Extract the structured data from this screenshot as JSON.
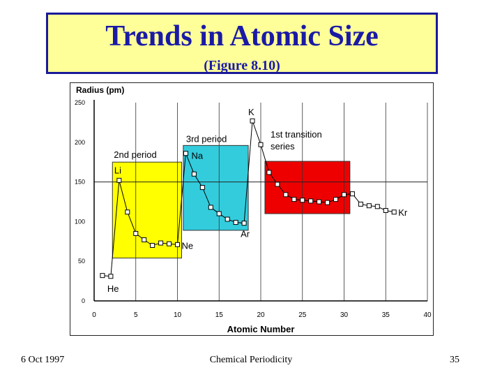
{
  "slide": {
    "title": "Trends in Atomic Size",
    "subtitle": "(Figure 8.10)"
  },
  "footer": {
    "date": "6 Oct 1997",
    "topic": "Chemical Periodicity",
    "page": "35"
  },
  "colors": {
    "title_text": "#1a1aa6",
    "title_fill": "#ffff99",
    "period2_box": "#ffff00",
    "period3_box": "#33ccdd",
    "transition_box": "#ee0000"
  },
  "chart_data": {
    "type": "line",
    "xlabel": "Atomic Number",
    "ylabel": "Radius (pm)",
    "xlim": [
      0,
      40
    ],
    "ylim": [
      0,
      250
    ],
    "xticks": [
      0,
      5,
      10,
      15,
      20,
      25,
      30,
      35,
      40
    ],
    "yticks": [
      0,
      50,
      100,
      150,
      200,
      250
    ],
    "grid": "vertical lines at each x tick, one horizontal reference line at y=150",
    "x": [
      1,
      2,
      3,
      4,
      5,
      6,
      7,
      8,
      9,
      10,
      11,
      12,
      13,
      14,
      15,
      16,
      17,
      18,
      19,
      20,
      21,
      22,
      23,
      24,
      25,
      26,
      27,
      28,
      29,
      30,
      31,
      32,
      33,
      34,
      35,
      36
    ],
    "y": [
      32,
      31,
      152,
      112,
      85,
      77,
      70,
      73,
      72,
      71,
      186,
      160,
      143,
      118,
      110,
      103,
      99,
      98,
      227,
      197,
      162,
      147,
      134,
      128,
      127,
      126,
      125,
      124,
      128,
      134,
      135,
      122,
      120,
      119,
      114,
      112
    ],
    "point_labels": [
      {
        "text": "He",
        "x": 2,
        "y": 31
      },
      {
        "text": "Li",
        "x": 3,
        "y": 152
      },
      {
        "text": "Ne",
        "x": 10,
        "y": 71
      },
      {
        "text": "Na",
        "x": 11,
        "y": 186
      },
      {
        "text": "Ar",
        "x": 18,
        "y": 98
      },
      {
        "text": "K",
        "x": 19,
        "y": 227
      },
      {
        "text": "Kr",
        "x": 36,
        "y": 112
      }
    ],
    "regions": [
      {
        "label": "2nd period",
        "x0": 2.2,
        "x1": 10.5,
        "y0": 54,
        "y1": 175,
        "color": "#ffff00"
      },
      {
        "label": "3rd period",
        "x0": 10.7,
        "x1": 18.5,
        "y0": 89,
        "y1": 196,
        "color": "#33ccdd"
      },
      {
        "label_lines": [
          "1st transition",
          "series"
        ],
        "x0": 20.5,
        "x1": 30.7,
        "y0": 110,
        "y1": 176,
        "color": "#ee0000"
      }
    ]
  }
}
